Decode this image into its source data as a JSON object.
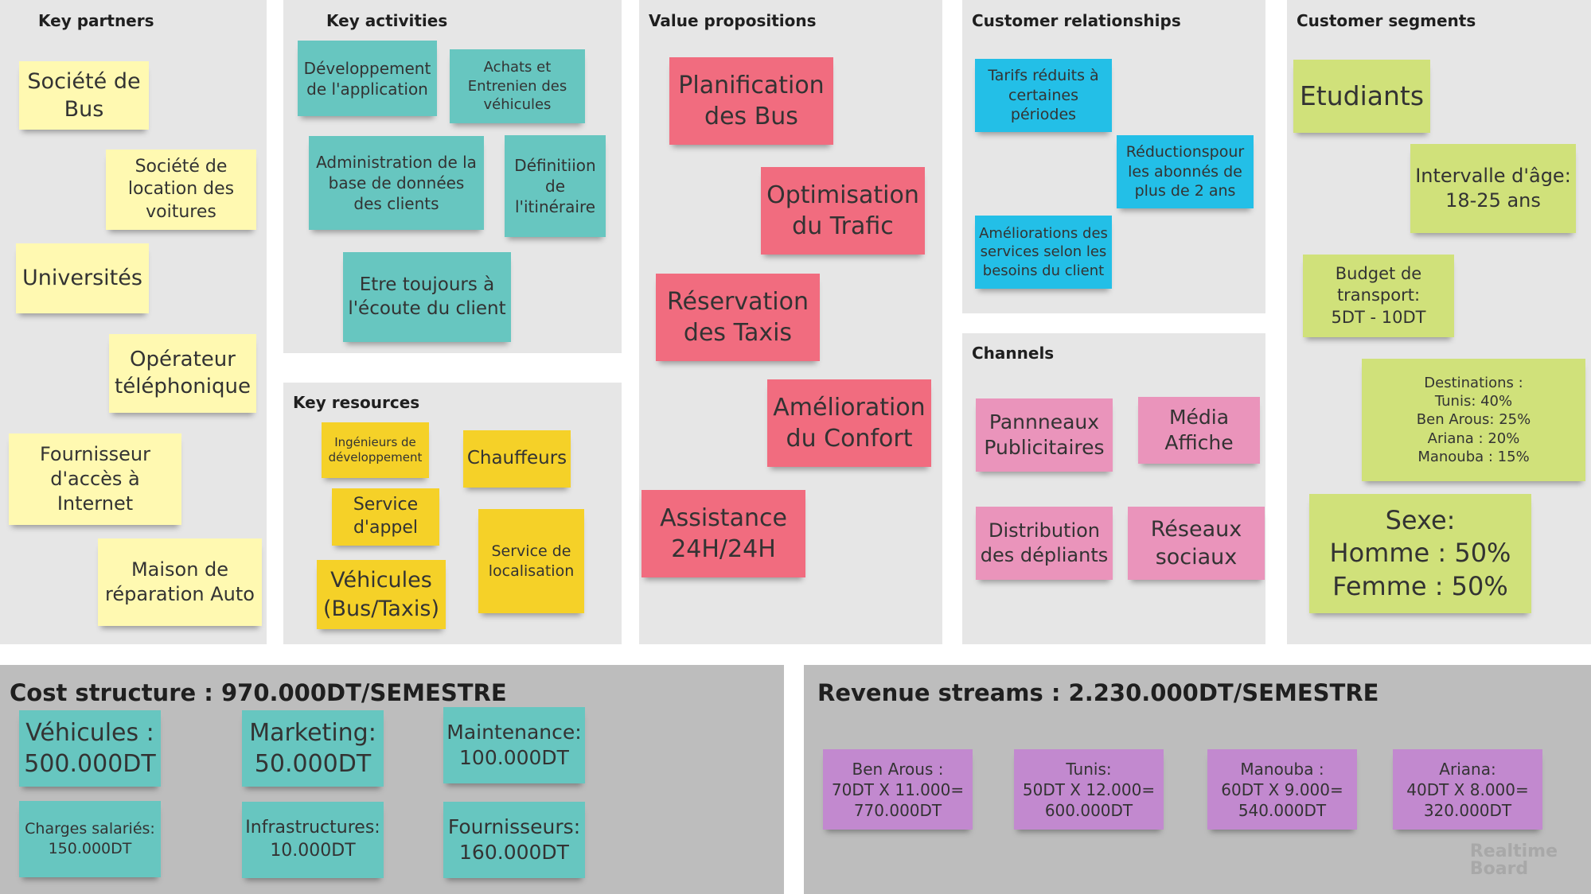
{
  "colors": {
    "yellow": "#fff9b1",
    "teal": "#67c6c0",
    "orange": "#f5d128",
    "red": "#f16c7f",
    "blue": "#23bfe7",
    "pink": "#ea94bb",
    "lime": "#d0e17a",
    "purple": "#c289cf",
    "panel_light": "#e6e6e6",
    "panel_dark": "#bdbdbd"
  },
  "key_partners": {
    "title": "Key partners",
    "notes": [
      "Société de\nBus",
      "Société de\nlocation des\nvoitures",
      "Universités",
      "Opérateur\ntéléphonique",
      "Fournisseur\nd'accès à\nInternet",
      "Maison de\nréparation Auto"
    ]
  },
  "key_activities": {
    "title": "Key activities",
    "notes": [
      "Développement\nde l'application",
      "Achats et\nEntrenien des\nvéhicules",
      "Administration de la\nbase de données\ndes clients",
      "Définitiion\nde\nl'itinéraire",
      "Etre toujours à\nl'écoute du client"
    ]
  },
  "key_resources": {
    "title": "Key resources",
    "notes": [
      "Ingénieurs de\ndéveloppement",
      "Chauffeurs",
      "Service\nd'appel",
      "Service de\nlocalisation",
      "Véhicules\n(Bus/Taxis)"
    ]
  },
  "value_propositions": {
    "title": "Value propositions",
    "notes": [
      "Planification\ndes Bus",
      "Optimisation\ndu Trafic",
      "Réservation\ndes Taxis",
      "Amélioration\ndu Confort",
      "Assistance\n24H/24H"
    ]
  },
  "customer_relationships": {
    "title": "Customer relationships",
    "notes": [
      "Tarifs réduits à\ncertaines\npériodes",
      "Réductionspour\nles abonnés de\nplus de 2 ans",
      "Améliorations des\nservices selon les\nbesoins du client"
    ]
  },
  "channels": {
    "title": "Channels",
    "notes": [
      "Pannneaux\nPublicitaires",
      "Média\nAffiche",
      "Distribution\ndes dépliants",
      "Réseaux\nsociaux"
    ]
  },
  "customer_segments": {
    "title": "Customer segments",
    "notes": [
      "Etudiants",
      "Intervalle d'âge:\n18-25 ans",
      "Budget de\ntransport:\n5DT - 10DT",
      "Destinations :\nTunis: 40%\nBen Arous: 25%\nAriana : 20%\nManouba : 15%",
      "Sexe:\nHomme : 50%\nFemme : 50%"
    ]
  },
  "cost_structure": {
    "title": "Cost structure : 970.000DT/SEMESTRE",
    "notes": [
      "Véhicules :\n500.000DT",
      "Marketing:\n50.000DT",
      "Maintenance:\n100.000DT",
      "Charges salariés:\n150.000DT",
      "Infrastructures:\n10.000DT",
      "Fournisseurs:\n160.000DT"
    ]
  },
  "revenue_streams": {
    "title": "Revenue streams : 2.230.000DT/SEMESTRE",
    "notes": [
      "Ben Arous :\n70DT X 11.000=\n770.000DT",
      "Tunis:\n50DT X 12.000=\n600.000DT",
      "Manouba :\n60DT X 9.000=\n540.000DT",
      "Ariana:\n40DT X 8.000=\n320.000DT"
    ]
  },
  "watermark": "Realtime\nBoard"
}
